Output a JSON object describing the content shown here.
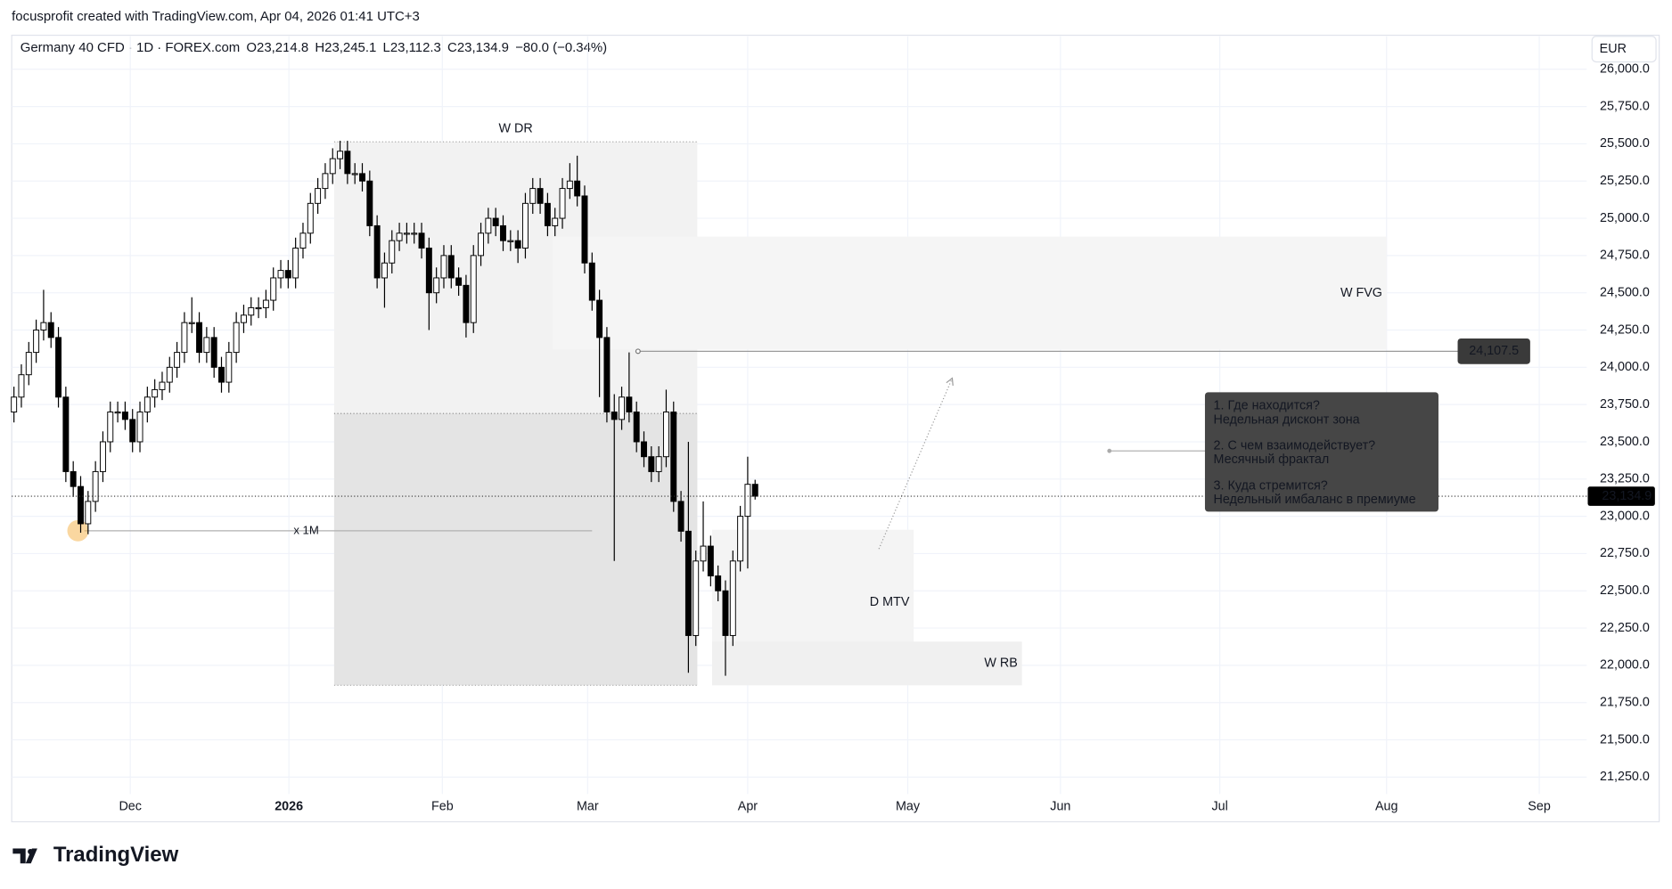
{
  "header": {
    "author": "focusprofit created with TradingView.com, Apr 04, 2026 01:41 UTC+3",
    "currency": "EUR",
    "brand": "TradingView"
  },
  "chart_data": {
    "type": "candlestick",
    "symbol": "Germany 40 CFD · 1D · FOREX.com",
    "ohlc_legend": [
      {
        "key": "O",
        "text": "23,214.8"
      },
      {
        "key": "H",
        "text": "23,245.1"
      },
      {
        "key": "L",
        "text": "23,112.3"
      },
      {
        "key": "C",
        "text": "23,134.9"
      }
    ],
    "change": "−80.0 (−0.34%)",
    "up_color": "#ffffff",
    "down_color": "#000000",
    "wick_color": "#000000",
    "series": [
      {
        "open": [
          23700,
          23800,
          23950,
          24100,
          24250,
          24300,
          24200,
          23800,
          23300,
          23200,
          22950,
          23100,
          23300,
          23500,
          23700,
          23700,
          23650,
          23500,
          23700,
          23800,
          23850,
          23900,
          24000,
          24100,
          24300,
          24300,
          24100,
          24200,
          24000,
          23900,
          24100,
          24300,
          24350,
          24400,
          24400,
          24450,
          24600,
          24650,
          24600,
          24800,
          24900,
          25100,
          25200,
          25300,
          25400,
          25450,
          25300,
          25300,
          25250,
          24950,
          24600,
          24700,
          24850,
          24900,
          24900,
          24900,
          24800,
          24500,
          24600,
          24750,
          24600,
          24550,
          24300,
          24750,
          24900,
          25000,
          24950,
          24850,
          24850,
          24800,
          25100,
          25200,
          25100,
          24950,
          25000,
          25200,
          25250,
          25150,
          24700,
          24450,
          24200,
          23700,
          23650,
          23800,
          23700,
          23500,
          23400,
          23300,
          23400,
          23700,
          23100,
          22900,
          22200,
          22700,
          22800,
          22600,
          22500,
          22200,
          22700,
          23000,
          23214.8
        ],
        "high": [
          23870,
          24020,
          24170,
          24320,
          24520,
          24370,
          24270,
          23870,
          23370,
          23270,
          23170,
          23370,
          23570,
          23770,
          23770,
          23770,
          23720,
          23770,
          23870,
          23920,
          23970,
          24070,
          24170,
          24370,
          24470,
          24370,
          24270,
          24270,
          24070,
          24170,
          24370,
          24420,
          24470,
          24470,
          24520,
          24670,
          24720,
          24720,
          24870,
          24970,
          25170,
          25270,
          25370,
          25470,
          25520,
          25520,
          25370,
          25370,
          25320,
          25020,
          24770,
          24920,
          24970,
          24970,
          24970,
          24970,
          24870,
          24670,
          24820,
          24820,
          24670,
          24620,
          24820,
          24970,
          25070,
          25070,
          25020,
          24920,
          24920,
          25170,
          25270,
          25270,
          25170,
          25070,
          25270,
          25370,
          25420,
          25220,
          24770,
          24520,
          24270,
          23820,
          23870,
          24100,
          23770,
          23570,
          23470,
          23470,
          23850,
          23770,
          23170,
          23500,
          22770,
          23100,
          22870,
          22670,
          22570,
          22770,
          23070,
          23400,
          23245.1
        ],
        "low": [
          23630,
          23730,
          23880,
          24030,
          24180,
          24130,
          23730,
          23230,
          23130,
          22890,
          22880,
          23030,
          23230,
          23430,
          23630,
          23580,
          23430,
          23430,
          23630,
          23730,
          23780,
          23830,
          23930,
          24030,
          24230,
          24030,
          24030,
          23930,
          23830,
          23830,
          24030,
          24230,
          24280,
          24330,
          24330,
          24380,
          24530,
          24530,
          24530,
          24730,
          24830,
          25030,
          25130,
          25230,
          25330,
          25230,
          25230,
          25180,
          24880,
          24530,
          24400,
          24630,
          24780,
          24830,
          24830,
          24730,
          24250,
          24430,
          24530,
          24530,
          24480,
          24200,
          24230,
          24680,
          24830,
          24880,
          24780,
          24780,
          24700,
          24730,
          25030,
          25030,
          24880,
          24880,
          24930,
          25130,
          25080,
          24630,
          24380,
          23800,
          23630,
          22700,
          23580,
          23630,
          23430,
          23330,
          23230,
          23230,
          23330,
          23030,
          22830,
          21950,
          22130,
          22630,
          22530,
          22430,
          21930,
          22130,
          22630,
          22650,
          23112.3
        ],
        "close": [
          23800,
          23950,
          24100,
          24250,
          24300,
          24200,
          23800,
          23300,
          23200,
          22950,
          23100,
          23300,
          23500,
          23700,
          23700,
          23650,
          23500,
          23700,
          23800,
          23850,
          23900,
          24000,
          24100,
          24300,
          24300,
          24100,
          24200,
          24000,
          23900,
          24100,
          24300,
          24350,
          24400,
          24400,
          24450,
          24600,
          24650,
          24600,
          24800,
          24900,
          25100,
          25200,
          25300,
          25400,
          25450,
          25300,
          25300,
          25250,
          24950,
          24600,
          24700,
          24850,
          24900,
          24900,
          24900,
          24800,
          24500,
          24600,
          24750,
          24600,
          24550,
          24300,
          24750,
          24900,
          25000,
          24950,
          24850,
          24850,
          24800,
          25100,
          25200,
          25100,
          24950,
          25000,
          25200,
          25250,
          25150,
          24700,
          24450,
          24200,
          23700,
          23650,
          23800,
          23700,
          23500,
          23400,
          23300,
          23400,
          23700,
          23100,
          22900,
          22200,
          22700,
          22800,
          22600,
          22500,
          22200,
          22700,
          23000,
          23214.8,
          23134.9
        ]
      }
    ],
    "xlim": [
      -0.3,
      212.2
    ],
    "xticks": [
      {
        "value": 15.7,
        "label": "Dec"
      },
      {
        "value": 37.1,
        "label": "2026"
      },
      {
        "value": 57.8,
        "label": "Feb"
      },
      {
        "value": 77.4,
        "label": "Mar"
      },
      {
        "value": 99,
        "label": "Apr"
      },
      {
        "value": 120.6,
        "label": "May"
      },
      {
        "value": 141.2,
        "label": "Jun"
      },
      {
        "value": 162.7,
        "label": "Jul"
      },
      {
        "value": 185.2,
        "label": "Aug"
      },
      {
        "value": 205.8,
        "label": "Sep"
      }
    ],
    "ylim": [
      21136,
      26071
    ],
    "yticks": [
      {
        "value": 21250,
        "label": "21,250.0"
      },
      {
        "value": 21500,
        "label": "21,500.0"
      },
      {
        "value": 21750,
        "label": "21,750.0"
      },
      {
        "value": 22000,
        "label": "22,000.0"
      },
      {
        "value": 22250,
        "label": "22,250.0"
      },
      {
        "value": 22500,
        "label": "22,500.0"
      },
      {
        "value": 22750,
        "label": "22,750.0"
      },
      {
        "value": 23000,
        "label": "23,000.0"
      },
      {
        "value": 23250,
        "label": "23,250.0"
      },
      {
        "value": 23500,
        "label": "23,500.0"
      },
      {
        "value": 23750,
        "label": "23,750.0"
      },
      {
        "value": 24000,
        "label": "24,000.0"
      },
      {
        "value": 24250,
        "label": "24,250.0"
      },
      {
        "value": 24500,
        "label": "24,500.0"
      },
      {
        "value": 24750,
        "label": "24,750.0"
      },
      {
        "value": 25000,
        "label": "25,000.0"
      },
      {
        "value": 25250,
        "label": "25,250.0"
      },
      {
        "value": 25500,
        "label": "25,500.0"
      },
      {
        "value": 25750,
        "label": "25,750.0"
      },
      {
        "value": 26000,
        "label": "26,000.0"
      }
    ],
    "grid": true,
    "last_price": {
      "value": 23134.9,
      "label": "23,134.9"
    },
    "price_line": {
      "value": 24107.5,
      "label": "24,107.5",
      "x": 84.2
    },
    "zones": [
      {
        "label": "W DR",
        "x": [
          43.2,
          92.2
        ],
        "y": [
          21866,
          25513
        ],
        "split": 23690,
        "color": "#f2f2f2",
        "color2": "#e4e4e4",
        "label_pos": "top"
      },
      {
        "label": "W FVG",
        "x": [
          72.7,
          185.2
        ],
        "y": [
          24119,
          24877
        ],
        "color": "#f5f5f5",
        "label_pos": "right"
      },
      {
        "label": "D MTV",
        "x": [
          94.2,
          121.4
        ],
        "y": [
          21937,
          22910
        ],
        "color": "#f4f4f4",
        "label_pos": "right"
      },
      {
        "label": "W RB",
        "x": [
          94.2,
          136.0
        ],
        "y": [
          21866,
          22159
        ],
        "color": "#f0f0f0",
        "label_pos": "right"
      }
    ],
    "fractal_line": {
      "label": "x 1M",
      "x": [
        9.5,
        78
      ],
      "y": 22903,
      "color": "#f5b041"
    },
    "arrow": {
      "x": [
        116.7,
        126.6
      ],
      "y": [
        22781,
        23927
      ]
    },
    "segment": {
      "x": [
        147.8,
        160.8
      ],
      "y": 23439
    },
    "note": [
      {
        "q": "1. Где находится?",
        "a": "Недельная дисконт зона"
      },
      {
        "q": "2. С чем взаимодействует?",
        "a": "Месячный фрактал"
      },
      {
        "q": "3. Куда стремится?",
        "a": "Недельный имбаланс в премиуме"
      }
    ]
  }
}
